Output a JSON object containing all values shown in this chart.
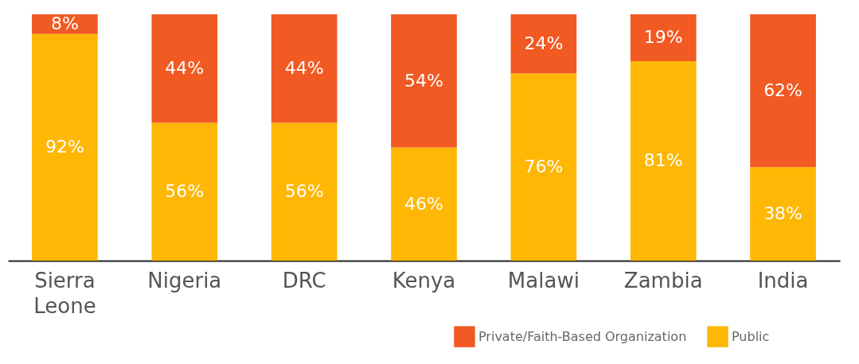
{
  "chart_data": {
    "type": "bar",
    "stacked": true,
    "categories": [
      "Sierra Leone",
      "Nigeria",
      "DRC",
      "Kenya",
      "Malawi",
      "Zambia",
      "India"
    ],
    "ylim": [
      0,
      100
    ],
    "tick_labels": "x",
    "legend": "bottom right",
    "grid": false,
    "series": [
      {
        "name": "Public",
        "color": "#feb705",
        "values": [
          92,
          56,
          56,
          46,
          76,
          81,
          38
        ],
        "value_labels": [
          "92%",
          "56%",
          "56%",
          "46%",
          "76%",
          "81%",
          "38%"
        ]
      },
      {
        "name": "Private/Faith-Based Organization",
        "color": "#f15a22",
        "values": [
          8,
          44,
          44,
          54,
          24,
          19,
          62
        ],
        "value_labels": [
          "8%",
          "44%",
          "44%",
          "54%",
          "24%",
          "19%",
          "62%"
        ]
      }
    ]
  }
}
